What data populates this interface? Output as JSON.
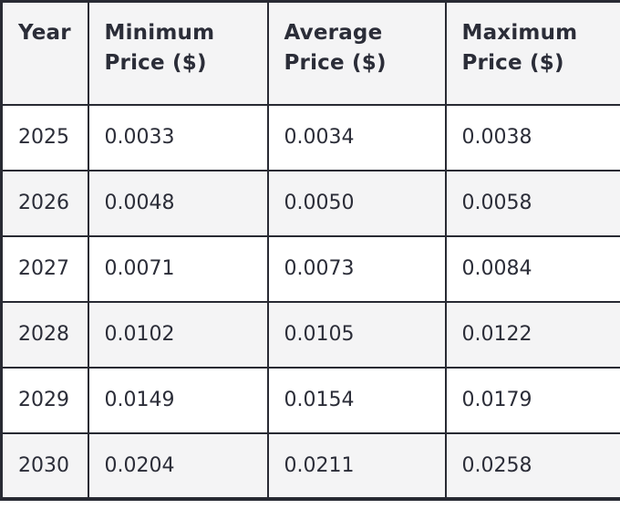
{
  "table": {
    "columns": [
      {
        "label": "Year"
      },
      {
        "label": "Minimum Price ($)"
      },
      {
        "label": "Average Price ($)"
      },
      {
        "label": "Maximum Price ($)"
      }
    ],
    "rows": [
      {
        "year": "2025",
        "min": "0.0033",
        "avg": "0.0034",
        "max": "0.0038"
      },
      {
        "year": "2026",
        "min": "0.0048",
        "avg": "0.0050",
        "max": "0.0058"
      },
      {
        "year": "2027",
        "min": "0.0071",
        "avg": "0.0073",
        "max": "0.0084"
      },
      {
        "year": "2028",
        "min": "0.0102",
        "avg": "0.0105",
        "max": "0.0122"
      },
      {
        "year": "2029",
        "min": "0.0149",
        "avg": "0.0154",
        "max": "0.0179"
      },
      {
        "year": "2030",
        "min": "0.0204",
        "avg": "0.0211",
        "max": "0.0258"
      }
    ]
  },
  "colors": {
    "border": "#282a33",
    "text": "#2b2d38",
    "header_background": "#f4f4f5",
    "alternate_row_background": "#f4f4f5",
    "row_background": "#ffffff"
  },
  "chart_data": {
    "type": "table",
    "title": "",
    "categories": [
      "2025",
      "2026",
      "2027",
      "2028",
      "2029",
      "2030"
    ],
    "series": [
      {
        "name": "Minimum Price ($)",
        "values": [
          0.0033,
          0.0048,
          0.0071,
          0.0102,
          0.0149,
          0.0204
        ]
      },
      {
        "name": "Average Price ($)",
        "values": [
          0.0034,
          0.005,
          0.0073,
          0.0105,
          0.0154,
          0.0211
        ]
      },
      {
        "name": "Maximum Price ($)",
        "values": [
          0.0038,
          0.0058,
          0.0084,
          0.0122,
          0.0179,
          0.0258
        ]
      }
    ],
    "layout": {
      "header_row": true,
      "striped_rows": true,
      "grid": true
    }
  }
}
